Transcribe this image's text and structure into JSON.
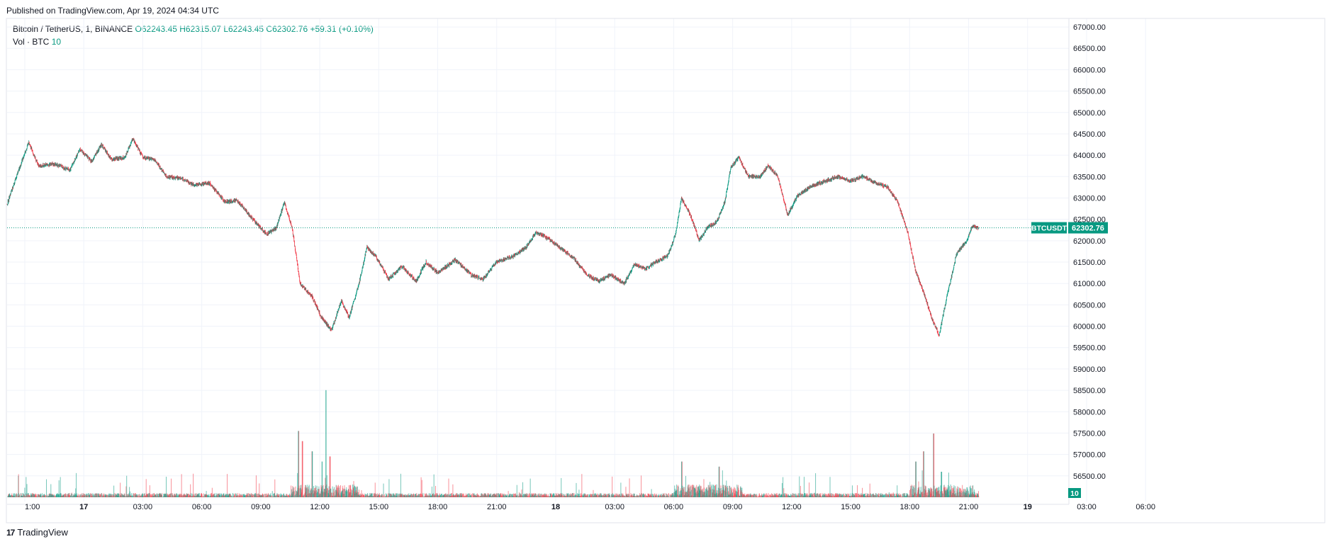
{
  "header": {
    "published": "Published on TradingView.com, Apr 19, 2024 04:34 UTC"
  },
  "legend": {
    "symbol": "Bitcoin / TetherUS, 1, BINANCE",
    "open": "O62243.45",
    "high": "H62315.07",
    "low": "L62243.45",
    "close": "C62302.76",
    "change": "+59.31 (+0.10%)",
    "volume_label": "Vol · BTC",
    "volume_value": "10"
  },
  "footer": {
    "brand": "TradingView",
    "logo_text": "17"
  },
  "colors": {
    "up": "#089981",
    "down": "#f23645",
    "grid": "#f0f3fa",
    "label_bg": "#089981"
  },
  "chart_data": {
    "type": "candlestick",
    "title": "Bitcoin / TetherUS, 1, BINANCE",
    "interval": "1 minute",
    "price_axis": {
      "ylim": [
        55900,
        67200
      ],
      "ticks": [
        "67000.00",
        "66500.00",
        "66000.00",
        "65500.00",
        "65000.00",
        "64500.00",
        "64000.00",
        "63500.00",
        "63000.00",
        "62500.00",
        "62000.00",
        "61500.00",
        "61000.00",
        "60500.00",
        "60000.00",
        "59500.00",
        "59000.00",
        "58500.00",
        "58000.00",
        "57500.00",
        "57000.00",
        "56500.00"
      ],
      "tick_values": [
        67000,
        66500,
        66000,
        65500,
        65000,
        64500,
        64000,
        63500,
        63000,
        62500,
        62000,
        61500,
        61000,
        60500,
        60000,
        59500,
        59000,
        58500,
        58000,
        57500,
        57000,
        56500
      ]
    },
    "time_axis": {
      "ticks": [
        "1:00",
        "17",
        "03:00",
        "06:00",
        "09:00",
        "12:00",
        "15:00",
        "18:00",
        "21:00",
        "18",
        "03:00",
        "06:00",
        "09:00",
        "12:00",
        "15:00",
        "18:00",
        "21:00",
        "19",
        "03:00",
        "06:00"
      ],
      "bold": [
        "17",
        "18",
        "19"
      ],
      "hour_span": [
        -0.9,
        53.1
      ]
    },
    "last_price": {
      "symbol_label": "BTCUSDT",
      "value": 62302.76,
      "value_label": "62302.76"
    },
    "volume_label": "10",
    "price_path": [
      {
        "t": -0.9,
        "p": 62850
      },
      {
        "t": -0.5,
        "p": 63400
      },
      {
        "t": 0.2,
        "p": 64300
      },
      {
        "t": 0.7,
        "p": 63750
      },
      {
        "t": 1.5,
        "p": 63800
      },
      {
        "t": 2.3,
        "p": 63650
      },
      {
        "t": 2.8,
        "p": 64150
      },
      {
        "t": 3.4,
        "p": 63850
      },
      {
        "t": 3.9,
        "p": 64250
      },
      {
        "t": 4.4,
        "p": 63900
      },
      {
        "t": 5.1,
        "p": 63950
      },
      {
        "t": 5.5,
        "p": 64400
      },
      {
        "t": 6.0,
        "p": 63950
      },
      {
        "t": 6.6,
        "p": 63900
      },
      {
        "t": 7.2,
        "p": 63500
      },
      {
        "t": 8.0,
        "p": 63450
      },
      {
        "t": 8.6,
        "p": 63300
      },
      {
        "t": 9.4,
        "p": 63350
      },
      {
        "t": 10.2,
        "p": 62900
      },
      {
        "t": 10.8,
        "p": 62950
      },
      {
        "t": 11.6,
        "p": 62500
      },
      {
        "t": 12.3,
        "p": 62150
      },
      {
        "t": 12.8,
        "p": 62300
      },
      {
        "t": 13.2,
        "p": 62900
      },
      {
        "t": 13.6,
        "p": 62300
      },
      {
        "t": 14.0,
        "p": 61000
      },
      {
        "t": 14.6,
        "p": 60700
      },
      {
        "t": 15.1,
        "p": 60200
      },
      {
        "t": 15.6,
        "p": 59900
      },
      {
        "t": 16.1,
        "p": 60600
      },
      {
        "t": 16.5,
        "p": 60200
      },
      {
        "t": 17.0,
        "p": 61000
      },
      {
        "t": 17.4,
        "p": 61850
      },
      {
        "t": 17.9,
        "p": 61600
      },
      {
        "t": 18.5,
        "p": 61100
      },
      {
        "t": 19.2,
        "p": 61400
      },
      {
        "t": 19.9,
        "p": 61050
      },
      {
        "t": 20.4,
        "p": 61500
      },
      {
        "t": 21.0,
        "p": 61250
      },
      {
        "t": 21.9,
        "p": 61550
      },
      {
        "t": 22.7,
        "p": 61200
      },
      {
        "t": 23.3,
        "p": 61100
      },
      {
        "t": 24.0,
        "p": 61500
      },
      {
        "t": 24.9,
        "p": 61650
      },
      {
        "t": 25.5,
        "p": 61850
      },
      {
        "t": 26.0,
        "p": 62200
      },
      {
        "t": 26.6,
        "p": 62050
      },
      {
        "t": 27.2,
        "p": 61850
      },
      {
        "t": 27.9,
        "p": 61600
      },
      {
        "t": 28.6,
        "p": 61200
      },
      {
        "t": 29.2,
        "p": 61050
      },
      {
        "t": 29.8,
        "p": 61200
      },
      {
        "t": 30.5,
        "p": 61000
      },
      {
        "t": 31.0,
        "p": 61450
      },
      {
        "t": 31.6,
        "p": 61350
      },
      {
        "t": 32.1,
        "p": 61500
      },
      {
        "t": 32.7,
        "p": 61650
      },
      {
        "t": 33.1,
        "p": 62150
      },
      {
        "t": 33.4,
        "p": 63000
      },
      {
        "t": 33.9,
        "p": 62550
      },
      {
        "t": 34.3,
        "p": 62000
      },
      {
        "t": 34.7,
        "p": 62300
      },
      {
        "t": 35.2,
        "p": 62450
      },
      {
        "t": 35.6,
        "p": 62900
      },
      {
        "t": 35.9,
        "p": 63700
      },
      {
        "t": 36.3,
        "p": 63950
      },
      {
        "t": 36.8,
        "p": 63500
      },
      {
        "t": 37.4,
        "p": 63500
      },
      {
        "t": 37.8,
        "p": 63750
      },
      {
        "t": 38.3,
        "p": 63500
      },
      {
        "t": 38.8,
        "p": 62600
      },
      {
        "t": 39.3,
        "p": 63050
      },
      {
        "t": 39.9,
        "p": 63250
      },
      {
        "t": 40.7,
        "p": 63400
      },
      {
        "t": 41.4,
        "p": 63500
      },
      {
        "t": 42.0,
        "p": 63400
      },
      {
        "t": 42.6,
        "p": 63500
      },
      {
        "t": 43.3,
        "p": 63350
      },
      {
        "t": 43.9,
        "p": 63250
      },
      {
        "t": 44.4,
        "p": 62900
      },
      {
        "t": 44.9,
        "p": 62200
      },
      {
        "t": 45.3,
        "p": 61300
      },
      {
        "t": 45.7,
        "p": 60800
      },
      {
        "t": 46.2,
        "p": 60100
      },
      {
        "t": 46.5,
        "p": 59800
      },
      {
        "t": 46.9,
        "p": 60700
      },
      {
        "t": 47.4,
        "p": 61700
      },
      {
        "t": 47.9,
        "p": 62000
      },
      {
        "t": 48.2,
        "p": 62350
      },
      {
        "t": 48.5,
        "p": 62300
      }
    ],
    "volume_spikes_hours": [
      {
        "t": 13.9,
        "v": 26
      },
      {
        "t": 14.1,
        "v": 22
      },
      {
        "t": 14.6,
        "v": 18
      },
      {
        "t": 15.1,
        "v": 14
      },
      {
        "t": 15.3,
        "v": 42
      },
      {
        "t": 15.5,
        "v": 16
      },
      {
        "t": 33.4,
        "v": 14
      },
      {
        "t": 35.3,
        "v": 12
      },
      {
        "t": 45.3,
        "v": 14
      },
      {
        "t": 45.7,
        "v": 18
      },
      {
        "t": 46.2,
        "v": 25
      },
      {
        "t": 46.6,
        "v": 10
      }
    ]
  }
}
